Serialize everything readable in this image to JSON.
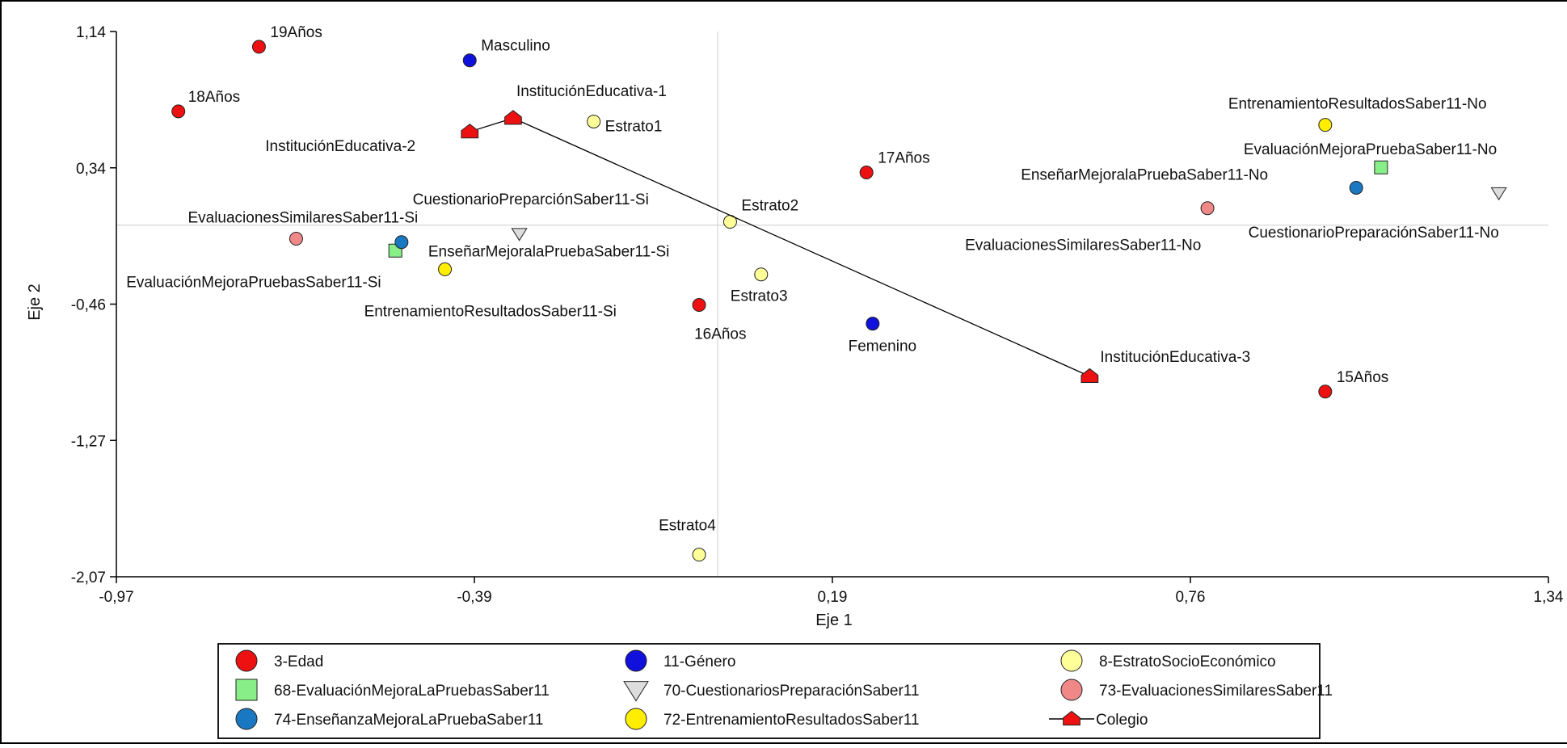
{
  "chart_data": {
    "type": "scatter",
    "xlabel": "Eje 1",
    "ylabel": "Eje 2",
    "xlim": [
      -0.97,
      1.34
    ],
    "ylim": [
      -2.07,
      1.14
    ],
    "x_ticks": [
      "-0,97",
      "-0,39",
      "0,19",
      "0,76",
      "1,34"
    ],
    "y_ticks": [
      "1,14",
      "0,34",
      "-0,46",
      "-1,27",
      "-2,07"
    ],
    "reference_lines": {
      "x": 0.0,
      "y": 0.0
    },
    "grid": false,
    "legend_position": "bottom",
    "series": [
      {
        "name": "3-Edad",
        "marker": "circle",
        "color": "#ee1111",
        "points": [
          {
            "label": "19Años",
            "x": -0.74,
            "y": 1.05
          },
          {
            "label": "18Años",
            "x": -0.87,
            "y": 0.67
          },
          {
            "label": "17Años",
            "x": 0.24,
            "y": 0.31
          },
          {
            "label": "16Años",
            "x": -0.03,
            "y": -0.47
          },
          {
            "label": "15Años",
            "x": 0.98,
            "y": -0.98
          }
        ]
      },
      {
        "name": "11-Género",
        "marker": "circle",
        "color": "#1111dd",
        "points": [
          {
            "label": "Masculino",
            "x": -0.4,
            "y": 0.97
          },
          {
            "label": "Femenino",
            "x": 0.25,
            "y": -0.58
          }
        ]
      },
      {
        "name": "8-EstratoSocioEconómico",
        "marker": "circle",
        "color": "#ffff99",
        "points": [
          {
            "label": "Estrato1",
            "x": -0.2,
            "y": 0.61
          },
          {
            "label": "Estrato2",
            "x": 0.02,
            "y": 0.02
          },
          {
            "label": "Estrato3",
            "x": 0.07,
            "y": -0.29
          },
          {
            "label": "Estrato4",
            "x": -0.03,
            "y": -1.94
          }
        ]
      },
      {
        "name": "68-EvaluaciónMejoraLaPruebasSaber11",
        "marker": "square",
        "color": "#88ee88",
        "points": [
          {
            "label": "EvaluaciónMejoraPruebasSaber11-Si",
            "x": -0.52,
            "y": -0.15
          },
          {
            "label": "EvaluaciónMejoraPruebaSaber11-No",
            "x": 1.07,
            "y": 0.34
          }
        ]
      },
      {
        "name": "70-CuestionariosPreparaciónSaber11",
        "marker": "triangle-down",
        "color": "#dddddd",
        "points": [
          {
            "label": "CuestionarioPreparciónSaber11-Si",
            "x": -0.32,
            "y": -0.05
          },
          {
            "label": "CuestionarioPreparaciónSaber11-No",
            "x": 1.26,
            "y": 0.19
          }
        ]
      },
      {
        "name": "73-EvaluacionesSimilaresSaber11",
        "marker": "circle",
        "color": "#f08888",
        "points": [
          {
            "label": "EvaluacionesSimilaresSaber11-Si",
            "x": -0.68,
            "y": -0.08
          },
          {
            "label": "EvaluacionesSimilaresSaber11-No",
            "x": 0.79,
            "y": 0.1
          }
        ]
      },
      {
        "name": "74-EnseñanzaMejoraLaPruebaSaber11",
        "marker": "circle",
        "color": "#1a78c2",
        "points": [
          {
            "label": "EnseñarMejoralaPruebaSaber11-Si",
            "x": -0.51,
            "y": -0.1
          },
          {
            "label": "EnseñarMejoralaPruebaSaber11-No",
            "x": 1.03,
            "y": 0.22
          }
        ]
      },
      {
        "name": "72-EntrenamientoResultadosSaber11",
        "marker": "circle",
        "color": "#ffee00",
        "points": [
          {
            "label": "EntrenamientoResultadosSaber11-Si",
            "x": -0.44,
            "y": -0.26
          },
          {
            "label": "EntrenamientoResultadosSaber11-No",
            "x": 0.98,
            "y": 0.59
          }
        ]
      },
      {
        "name": "Colegio",
        "marker": "pentagon",
        "connected": true,
        "color": "#ee1111",
        "points": [
          {
            "label": "InstituciónEducativa-2",
            "x": -0.4,
            "y": 0.55
          },
          {
            "label": "InstituciónEducativa-1",
            "x": -0.33,
            "y": 0.63
          },
          {
            "label": "InstituciónEducativa-3",
            "x": 0.6,
            "y": -0.89
          }
        ]
      }
    ],
    "legend": [
      [
        "3-Edad",
        "11-Género",
        "8-EstratoSocioEconómico"
      ],
      [
        "68-EvaluaciónMejoraLaPruebasSaber11",
        "70-CuestionariosPreparaciónSaber11",
        "73-EvaluacionesSimilaresSaber11"
      ],
      [
        "74-EnseñanzaMejoraLaPruebaSaber11",
        "72-EntrenamientoResultadosSaber11",
        "Colegio"
      ]
    ]
  }
}
